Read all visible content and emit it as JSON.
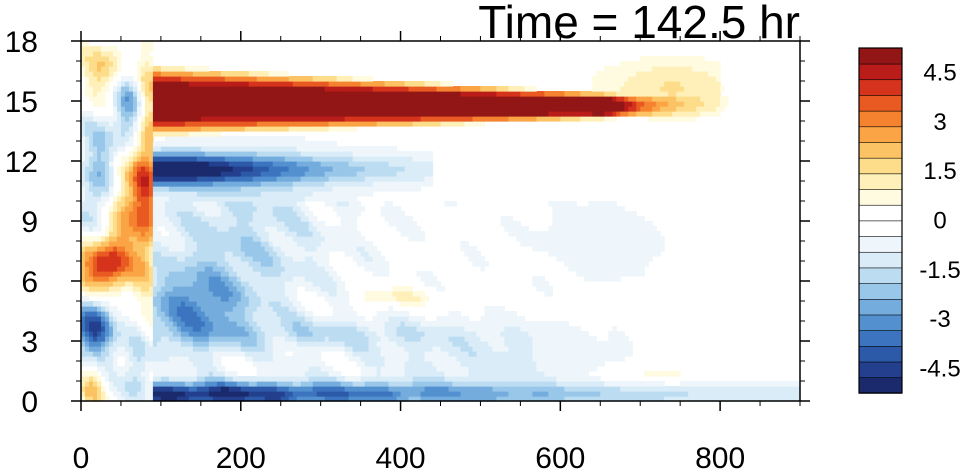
{
  "chart_data": {
    "type": "heatmap",
    "title": "Time = 142.5 hr",
    "xlabel": "",
    "ylabel": "",
    "xlim": [
      0,
      900
    ],
    "ylim": [
      0,
      18
    ],
    "x_ticks": [
      0,
      200,
      400,
      600,
      800
    ],
    "x_tick_labels": [
      "0",
      "200",
      "400",
      "600",
      "800"
    ],
    "y_ticks": [
      0,
      3,
      6,
      9,
      12,
      15,
      18
    ],
    "y_tick_labels": [
      "0",
      "3",
      "6",
      "9",
      "12",
      "15",
      "18"
    ],
    "colorbar": {
      "levels": [
        -5.25,
        -4.75,
        -4.25,
        -3.75,
        -3.25,
        -2.75,
        -2.25,
        -1.75,
        -1.25,
        -0.75,
        -0.25,
        0.25,
        0.75,
        1.25,
        1.75,
        2.25,
        2.75,
        3.25,
        3.75,
        4.25,
        4.75,
        5.25
      ],
      "labels": [
        {
          "value": 4.5,
          "text": "4.5"
        },
        {
          "value": 3,
          "text": "3"
        },
        {
          "value": 1.5,
          "text": "1.5"
        },
        {
          "value": 0,
          "text": "0"
        },
        {
          "value": -1.5,
          "text": "-1.5"
        },
        {
          "value": -3,
          "text": "-3"
        },
        {
          "value": -4.5,
          "text": "-4.5"
        }
      ],
      "colors": [
        "#1a2a6c",
        "#233f8e",
        "#2d5aa8",
        "#3c74bf",
        "#5390cf",
        "#74acdd",
        "#98c7ea",
        "#bcdcf2",
        "#d9ecf8",
        "#eef6fb",
        "#ffffff",
        "#ffffff",
        "#fffbe0",
        "#fef0b8",
        "#fddc8a",
        "#fcc365",
        "#faa445",
        "#f5822e",
        "#e85a22",
        "#d6331c",
        "#b91c19",
        "#921616"
      ]
    },
    "features": [
      {
        "name": "upper-positive-band",
        "x_range": [
          95,
          700
        ],
        "y_range": [
          13,
          17
        ],
        "value_range": [
          2,
          6
        ]
      },
      {
        "name": "negative-band-below",
        "x_range": [
          95,
          420
        ],
        "y_range": [
          10.5,
          12.5
        ],
        "value_range": [
          -6,
          -1
        ]
      },
      {
        "name": "near-surface-negative",
        "x_range": [
          80,
          600
        ],
        "y_range": [
          0,
          1.2
        ],
        "value_range": [
          -5.5,
          -0.5
        ]
      },
      {
        "name": "left-positive-blob",
        "x_range": [
          0,
          60
        ],
        "y_range": [
          5,
          8
        ],
        "value_range": [
          4,
          6
        ]
      },
      {
        "name": "mid-level-negative",
        "x_range": [
          80,
          200
        ],
        "y_range": [
          3,
          6
        ],
        "value_range": [
          -4,
          -1
        ]
      }
    ]
  }
}
